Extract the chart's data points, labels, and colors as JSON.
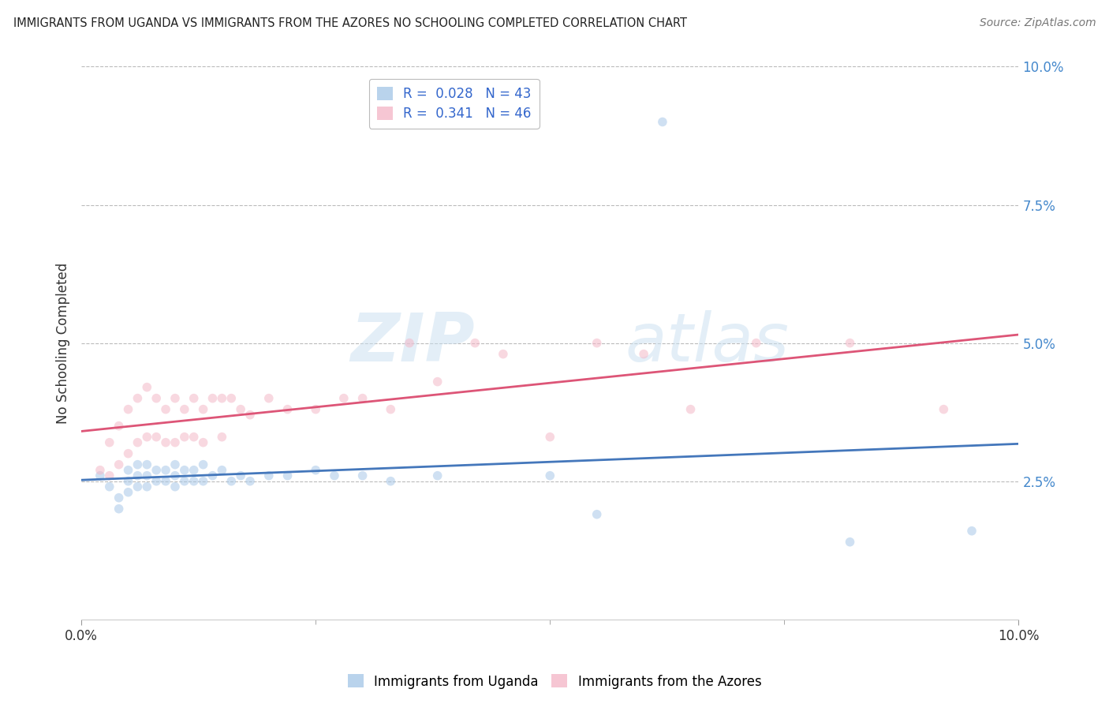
{
  "title": "IMMIGRANTS FROM UGANDA VS IMMIGRANTS FROM THE AZORES NO SCHOOLING COMPLETED CORRELATION CHART",
  "source": "Source: ZipAtlas.com",
  "ylabel": "No Schooling Completed",
  "xlim": [
    0.0,
    0.1
  ],
  "ylim": [
    0.0,
    0.1
  ],
  "ytick_positions": [
    0.025,
    0.05,
    0.075,
    0.1
  ],
  "ytick_labels": [
    "2.5%",
    "5.0%",
    "7.5%",
    "10.0%"
  ],
  "xtick_positions": [
    0.0,
    0.1
  ],
  "xtick_labels": [
    "0.0%",
    "10.0%"
  ],
  "legend1_label": "R =  0.028   N = 43",
  "legend2_label": "R =  0.341   N = 46",
  "legend1_color": "#a8c8e8",
  "legend2_color": "#f4b8c8",
  "line1_color": "#4477bb",
  "line2_color": "#dd5577",
  "marker_size": 70,
  "marker_alpha": 0.55,
  "uganda_x": [
    0.002,
    0.003,
    0.004,
    0.004,
    0.005,
    0.005,
    0.005,
    0.006,
    0.006,
    0.006,
    0.007,
    0.007,
    0.007,
    0.008,
    0.008,
    0.009,
    0.009,
    0.01,
    0.01,
    0.01,
    0.011,
    0.011,
    0.012,
    0.012,
    0.013,
    0.013,
    0.014,
    0.015,
    0.016,
    0.017,
    0.018,
    0.02,
    0.022,
    0.025,
    0.027,
    0.03,
    0.033,
    0.038,
    0.05,
    0.055,
    0.062,
    0.082,
    0.095
  ],
  "uganda_y": [
    0.026,
    0.024,
    0.022,
    0.02,
    0.027,
    0.025,
    0.023,
    0.028,
    0.026,
    0.024,
    0.028,
    0.026,
    0.024,
    0.027,
    0.025,
    0.027,
    0.025,
    0.028,
    0.026,
    0.024,
    0.027,
    0.025,
    0.027,
    0.025,
    0.028,
    0.025,
    0.026,
    0.027,
    0.025,
    0.026,
    0.025,
    0.026,
    0.026,
    0.027,
    0.026,
    0.026,
    0.025,
    0.026,
    0.026,
    0.019,
    0.09,
    0.014,
    0.016
  ],
  "azores_x": [
    0.002,
    0.003,
    0.003,
    0.004,
    0.004,
    0.005,
    0.005,
    0.006,
    0.006,
    0.007,
    0.007,
    0.008,
    0.008,
    0.009,
    0.009,
    0.01,
    0.01,
    0.011,
    0.011,
    0.012,
    0.012,
    0.013,
    0.013,
    0.014,
    0.015,
    0.015,
    0.016,
    0.017,
    0.018,
    0.02,
    0.022,
    0.025,
    0.028,
    0.03,
    0.033,
    0.035,
    0.038,
    0.042,
    0.045,
    0.05,
    0.055,
    0.06,
    0.065,
    0.072,
    0.082,
    0.092
  ],
  "azores_y": [
    0.027,
    0.032,
    0.026,
    0.035,
    0.028,
    0.038,
    0.03,
    0.04,
    0.032,
    0.042,
    0.033,
    0.04,
    0.033,
    0.038,
    0.032,
    0.04,
    0.032,
    0.038,
    0.033,
    0.04,
    0.033,
    0.038,
    0.032,
    0.04,
    0.04,
    0.033,
    0.04,
    0.038,
    0.037,
    0.04,
    0.038,
    0.038,
    0.04,
    0.04,
    0.038,
    0.05,
    0.043,
    0.05,
    0.048,
    0.033,
    0.05,
    0.048,
    0.038,
    0.05,
    0.05,
    0.038
  ],
  "watermark_zip": "ZIP",
  "watermark_atlas": "atlas",
  "background_color": "#ffffff",
  "grid_color": "#bbbbbb"
}
